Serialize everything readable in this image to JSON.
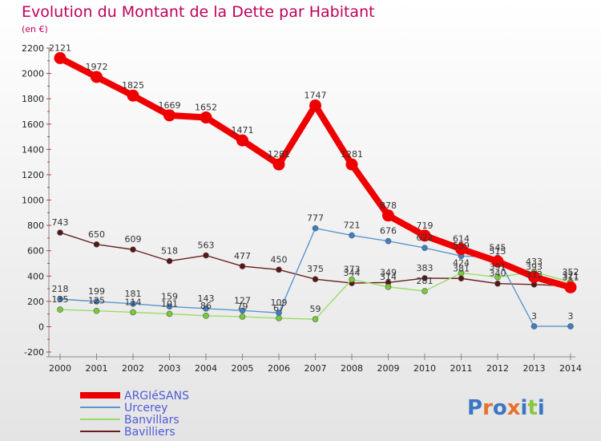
{
  "chart_data": {
    "type": "line",
    "title": "Evolution du Montant de la Dette par Habitant",
    "subtitle": "(en €)",
    "categories": [
      "2000",
      "2001",
      "2002",
      "2003",
      "2004",
      "2005",
      "2006",
      "2007",
      "2008",
      "2009",
      "2010",
      "2011",
      "2012",
      "2013",
      "2014"
    ],
    "ylim": [
      -200,
      2200
    ],
    "yticks": [
      -200,
      0,
      200,
      400,
      600,
      800,
      1000,
      1200,
      1400,
      1600,
      1800,
      2000,
      2200
    ],
    "grid": false,
    "legend_position": "bottom-left",
    "series": [
      {
        "name": "ARGIéSANS",
        "color": "#ee0000",
        "values": [
          2121,
          1972,
          1825,
          1669,
          1652,
          1471,
          1281,
          1747,
          1281,
          878,
          719,
          614,
          515,
          393,
          311
        ],
        "labels": [
          "2121",
          "1972",
          "1825",
          "1669",
          "1652",
          "1471",
          "1281",
          "1747",
          "1281",
          "878",
          "719",
          "614",
          "515",
          "393",
          "311"
        ]
      },
      {
        "name": "Urcerey",
        "color": "#5b96d0",
        "values": [
          218,
          199,
          181,
          159,
          143,
          127,
          109,
          777,
          721,
          676,
          622,
          559,
          545,
          3,
          3
        ],
        "labels": [
          "218",
          "199",
          "181",
          "159",
          "143",
          "127",
          "109",
          "777",
          "721",
          "676",
          "622",
          "559",
          "545",
          "3",
          "3"
        ]
      },
      {
        "name": "Banvillars",
        "color": "#99dd66",
        "values": [
          135,
          125,
          114,
          101,
          86,
          79,
          67,
          59,
          373,
          314,
          281,
          424,
          391,
          433,
          352
        ],
        "labels": [
          "135",
          "125",
          "114",
          "101",
          "86",
          "79",
          "67",
          "59",
          "373",
          "314",
          "281",
          "424",
          "391",
          "433",
          "352"
        ]
      },
      {
        "name": "Bavilliers",
        "color": "#6a1d1d",
        "values": [
          743,
          650,
          609,
          518,
          563,
          477,
          450,
          375,
          344,
          349,
          383,
          381,
          340,
          333,
          321
        ],
        "labels": [
          "743",
          "650",
          "609",
          "518",
          "563",
          "477",
          "450",
          "375",
          "344",
          "349",
          "383",
          "381",
          "340",
          "333",
          "321"
        ]
      }
    ]
  },
  "logo": {
    "text": "Proxiti"
  }
}
